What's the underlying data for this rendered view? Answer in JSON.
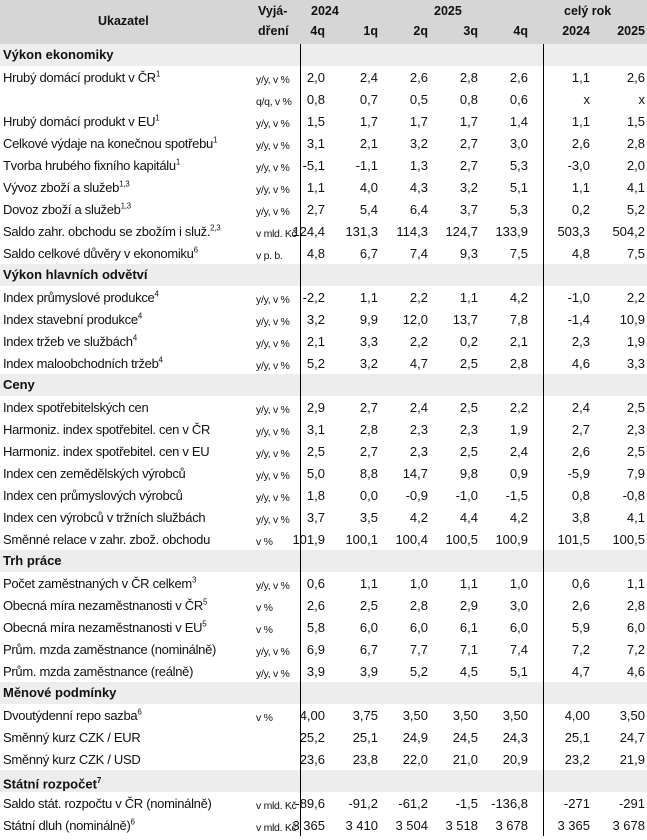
{
  "header": {
    "indicator": "Ukazatel",
    "unit_line1": "Vyjá-",
    "unit_line2": "dření",
    "year_2024": "2024",
    "year_2025": "2025",
    "full_year": "celý rok",
    "cols": [
      "4q",
      "1q",
      "2q",
      "3q",
      "4q",
      "2024",
      "2025"
    ]
  },
  "sections": [
    {
      "title": "Výkon ekonomiky",
      "sup": "",
      "rows": [
        {
          "label": "Hrubý domácí produkt v ČR",
          "sup": "1",
          "unit": "y/y, v %",
          "values": [
            "2,0",
            "2,4",
            "2,6",
            "2,8",
            "2,6",
            "1,1",
            "2,6"
          ]
        },
        {
          "label": "",
          "sup": "",
          "unit": "q/q, v %",
          "values": [
            "0,8",
            "0,7",
            "0,5",
            "0,8",
            "0,6",
            "x",
            "x"
          ]
        },
        {
          "label": "Hrubý domácí produkt v EU",
          "sup": "1",
          "unit": "y/y, v %",
          "values": [
            "1,5",
            "1,7",
            "1,7",
            "1,7",
            "1,4",
            "1,1",
            "1,5"
          ]
        },
        {
          "label": "Celkové výdaje na konečnou spotřebu",
          "sup": "1",
          "unit": "y/y, v %",
          "values": [
            "3,1",
            "2,1",
            "3,2",
            "2,7",
            "3,0",
            "2,6",
            "2,8"
          ]
        },
        {
          "label": "Tvorba hrubého fixního kapitálu",
          "sup": "1",
          "unit": "y/y, v %",
          "values": [
            "-5,1",
            "-1,1",
            "1,3",
            "2,7",
            "5,3",
            "-3,0",
            "2,0"
          ]
        },
        {
          "label": "Vývoz zboží a služeb",
          "sup": "1,3",
          "unit": "y/y, v %",
          "values": [
            "1,1",
            "4,0",
            "4,3",
            "3,2",
            "5,1",
            "1,1",
            "4,1"
          ]
        },
        {
          "label": "Dovoz zboží a služeb",
          "sup": "1,3",
          "unit": "y/y, v %",
          "values": [
            "2,7",
            "5,4",
            "6,4",
            "3,7",
            "5,3",
            "0,2",
            "5,2"
          ]
        },
        {
          "label": "Saldo zahr. obchodu se zbožím i služ.",
          "sup": "2,3",
          "unit": "v mld. Kč",
          "values": [
            "124,4",
            "131,3",
            "114,3",
            "124,7",
            "133,9",
            "503,3",
            "504,2"
          ]
        },
        {
          "label": "Saldo celkové důvěry v ekonomiku",
          "sup": "6",
          "unit": "v p. b.",
          "values": [
            "4,8",
            "6,7",
            "7,4",
            "9,3",
            "7,5",
            "4,8",
            "7,5"
          ]
        }
      ]
    },
    {
      "title": "Výkon hlavních odvětví",
      "sup": "",
      "rows": [
        {
          "label": "Index průmyslové produkce",
          "sup": "4",
          "unit": "y/y, v %",
          "values": [
            "-2,2",
            "1,1",
            "2,2",
            "1,1",
            "4,2",
            "-1,0",
            "2,2"
          ]
        },
        {
          "label": "Index stavební produkce",
          "sup": "4",
          "unit": "y/y, v %",
          "values": [
            "3,2",
            "9,9",
            "12,0",
            "13,7",
            "7,8",
            "-1,4",
            "10,9"
          ]
        },
        {
          "label": "Index tržeb ve službách",
          "sup": "4",
          "unit": "y/y, v %",
          "values": [
            "2,1",
            "3,3",
            "2,2",
            "0,2",
            "2,1",
            "2,3",
            "1,9"
          ]
        },
        {
          "label": "Index maloobchodních tržeb",
          "sup": "4",
          "unit": "y/y, v %",
          "values": [
            "5,2",
            "3,2",
            "4,7",
            "2,5",
            "2,8",
            "4,6",
            "3,3"
          ]
        }
      ]
    },
    {
      "title": "Ceny",
      "sup": "",
      "rows": [
        {
          "label": "Index spotřebitelských cen",
          "sup": "",
          "unit": "y/y, v %",
          "values": [
            "2,9",
            "2,7",
            "2,4",
            "2,5",
            "2,2",
            "2,4",
            "2,5"
          ]
        },
        {
          "label": "Harmoniz. index spotřebitel. cen v ČR",
          "sup": "",
          "unit": "y/y, v %",
          "values": [
            "3,1",
            "2,8",
            "2,3",
            "2,3",
            "1,9",
            "2,7",
            "2,3"
          ]
        },
        {
          "label": "Harmoniz. index spotřebitel. cen v EU",
          "sup": "",
          "unit": "y/y, v %",
          "values": [
            "2,5",
            "2,7",
            "2,3",
            "2,5",
            "2,4",
            "2,6",
            "2,5"
          ]
        },
        {
          "label": "Index cen zemědělských výrobců",
          "sup": "",
          "unit": "y/y, v %",
          "values": [
            "5,0",
            "8,8",
            "14,7",
            "9,8",
            "0,9",
            "-5,9",
            "7,9"
          ]
        },
        {
          "label": "Index cen průmyslových výrobců",
          "sup": "",
          "unit": "y/y, v %",
          "values": [
            "1,8",
            "0,0",
            "-0,9",
            "-1,0",
            "-1,5",
            "0,8",
            "-0,8"
          ]
        },
        {
          "label": "Index cen výrobců v tržních službách",
          "sup": "",
          "unit": "y/y, v %",
          "values": [
            "3,7",
            "3,5",
            "4,2",
            "4,4",
            "4,2",
            "3,8",
            "4,1"
          ]
        },
        {
          "label": "Směnné relace v zahr. zbož. obchodu",
          "sup": "",
          "unit": "v %",
          "values": [
            "101,9",
            "100,1",
            "100,4",
            "100,5",
            "100,9",
            "101,5",
            "100,5"
          ]
        }
      ]
    },
    {
      "title": "Trh práce",
      "sup": "",
      "rows": [
        {
          "label": "Počet zaměstnaných v ČR celkem",
          "sup": "3",
          "unit": "y/y, v %",
          "values": [
            "0,6",
            "1,1",
            "1,0",
            "1,1",
            "1,0",
            "0,6",
            "1,1"
          ]
        },
        {
          "label": "Obecná míra nezaměstnanosti v ČR",
          "sup": "5",
          "unit": "v %",
          "values": [
            "2,6",
            "2,5",
            "2,8",
            "2,9",
            "3,0",
            "2,6",
            "2,8"
          ]
        },
        {
          "label": "Obecná míra nezaměstnanosti v EU",
          "sup": "5",
          "unit": "v %",
          "values": [
            "5,8",
            "6,0",
            "6,0",
            "6,1",
            "6,0",
            "5,9",
            "6,0"
          ]
        },
        {
          "label": "Prům. mzda zaměstnance (nominálně)",
          "sup": "",
          "unit": "y/y, v %",
          "values": [
            "6,9",
            "6,7",
            "7,7",
            "7,1",
            "7,4",
            "7,2",
            "7,2"
          ]
        },
        {
          "label": "Prům. mzda zaměstnance (reálně)",
          "sup": "",
          "unit": "y/y, v %",
          "values": [
            "3,9",
            "3,9",
            "5,2",
            "4,5",
            "5,1",
            "4,7",
            "4,6"
          ]
        }
      ]
    },
    {
      "title": "Měnové podmínky",
      "sup": "",
      "rows": [
        {
          "label": "Dvoutýdenní repo sazba",
          "sup": "6",
          "unit": "v %",
          "values": [
            "4,00",
            "3,75",
            "3,50",
            "3,50",
            "3,50",
            "4,00",
            "3,50"
          ]
        },
        {
          "label": "Směnný kurz CZK / EUR",
          "sup": "",
          "unit": "",
          "values": [
            "25,2",
            "25,1",
            "24,9",
            "24,5",
            "24,3",
            "25,1",
            "24,7"
          ]
        },
        {
          "label": "Směnný kurz CZK / USD",
          "sup": "",
          "unit": "",
          "values": [
            "23,6",
            "23,8",
            "22,0",
            "21,0",
            "20,9",
            "23,2",
            "21,9"
          ]
        }
      ]
    },
    {
      "title": "Státní rozpočet",
      "sup": "7",
      "rows": [
        {
          "label": "Saldo stát. rozpočtu v ČR (nominálně)",
          "sup": "",
          "unit": "v mld. Kč",
          "values": [
            "-89,6",
            "-91,2",
            "-61,2",
            "-1,5",
            "-136,8",
            "-271",
            "-291"
          ]
        },
        {
          "label": "Státní dluh (nominálně)",
          "sup": "6",
          "unit": "v mld. Kč",
          "values": [
            "3 365",
            "3 410",
            "3 504",
            "3 518",
            "3 678",
            "3 365",
            "3 678"
          ]
        }
      ]
    }
  ]
}
